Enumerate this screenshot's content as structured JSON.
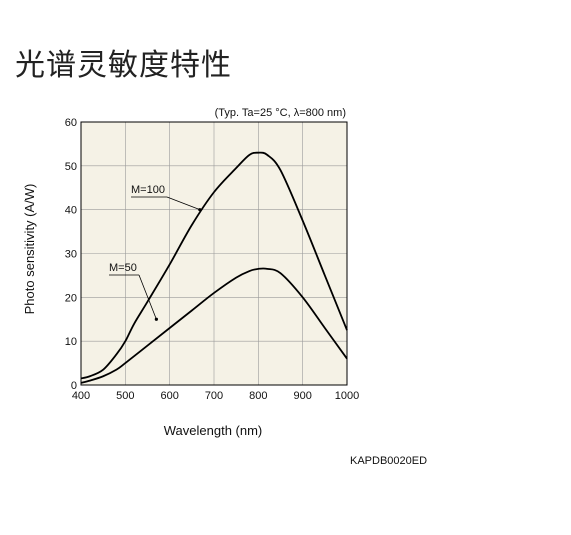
{
  "page": {
    "title": "光谱灵敏度特性"
  },
  "chart_data": {
    "type": "line",
    "title": "",
    "conditions": "(Typ. Ta=25 °C, λ=800 nm)",
    "xlabel": "Wavelength (nm)",
    "ylabel": "Photo sensitivity (A/W)",
    "xlim": [
      400,
      1000
    ],
    "ylim": [
      0,
      60
    ],
    "xticks": [
      400,
      500,
      600,
      700,
      800,
      900,
      1000
    ],
    "yticks": [
      0,
      10,
      20,
      30,
      40,
      50,
      60
    ],
    "grid": true,
    "background": "#f5f2e6",
    "line_color": "#000000",
    "series": [
      {
        "name": "M=100",
        "x": [
          400,
          420,
          450,
          480,
          500,
          520,
          550,
          600,
          650,
          700,
          750,
          780,
          800,
          820,
          850,
          900,
          950,
          1000
        ],
        "values": [
          1.5,
          2.0,
          3.5,
          7.0,
          10.0,
          14.0,
          19.0,
          27.5,
          36.5,
          44.0,
          49.5,
          52.5,
          53.0,
          52.5,
          49.0,
          37.5,
          25.0,
          12.5
        ]
      },
      {
        "name": "M=50",
        "x": [
          400,
          420,
          450,
          480,
          500,
          550,
          600,
          650,
          700,
          750,
          780,
          800,
          820,
          850,
          900,
          950,
          1000
        ],
        "values": [
          0.5,
          1.0,
          2.0,
          3.5,
          5.0,
          9.0,
          13.0,
          17.0,
          21.0,
          24.5,
          26.0,
          26.5,
          26.5,
          25.5,
          20.0,
          13.0,
          6.0
        ]
      }
    ],
    "annotations": [
      {
        "text": "M=100",
        "series": "M=100",
        "pointer_x": 668,
        "pointer_y": 40.0
      },
      {
        "text": "M=50",
        "series": "M=50",
        "pointer_x": 570,
        "pointer_y": 15.0
      }
    ],
    "figure_code": "KAPDB0020ED"
  }
}
